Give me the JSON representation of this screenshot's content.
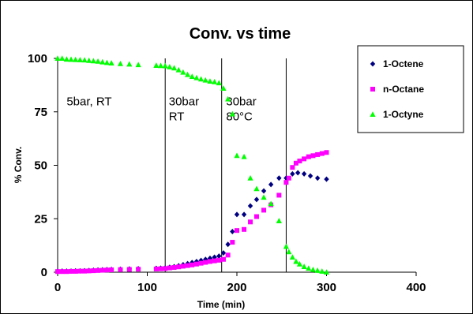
{
  "chart_data": {
    "type": "scatter",
    "title": "Conv. vs time",
    "xlabel": "Time (min)",
    "ylabel": "% Conv.",
    "xlim": [
      0,
      400
    ],
    "ylim": [
      0,
      100
    ],
    "xticks": [
      "0",
      "100",
      "200",
      "300",
      "400"
    ],
    "yticks": [
      "0",
      "25",
      "50",
      "75",
      "100"
    ],
    "grid": false,
    "legend": "top-right",
    "vlines": [
      0,
      120,
      183,
      255
    ],
    "annotations": [
      {
        "lines": [
          "5bar, RT"
        ],
        "x": 10,
        "y": 78
      },
      {
        "lines": [
          "30bar",
          "RT"
        ],
        "x": 124,
        "y": 78
      },
      {
        "lines": [
          "30bar",
          "80°C"
        ],
        "x": 188,
        "y": 78
      }
    ],
    "series": [
      {
        "name": "1-Octene",
        "color": "#000080",
        "marker": "diamond",
        "points": [
          [
            0,
            0.5
          ],
          [
            5,
            0.5
          ],
          [
            10,
            0.5
          ],
          [
            15,
            0.5
          ],
          [
            20,
            0.6
          ],
          [
            25,
            0.6
          ],
          [
            30,
            0.7
          ],
          [
            35,
            0.8
          ],
          [
            40,
            0.9
          ],
          [
            45,
            1.0
          ],
          [
            50,
            1.1
          ],
          [
            55,
            1.2
          ],
          [
            60,
            1.3
          ],
          [
            70,
            1.4
          ],
          [
            80,
            1.5
          ],
          [
            90,
            1.6
          ],
          [
            110,
            1.8
          ],
          [
            115,
            1.9
          ],
          [
            120,
            2.0
          ],
          [
            125,
            2.3
          ],
          [
            130,
            2.6
          ],
          [
            135,
            3.0
          ],
          [
            140,
            3.5
          ],
          [
            145,
            4.0
          ],
          [
            150,
            4.5
          ],
          [
            155,
            5.0
          ],
          [
            160,
            5.5
          ],
          [
            165,
            6.0
          ],
          [
            170,
            6.5
          ],
          [
            175,
            7.0
          ],
          [
            180,
            7.5
          ],
          [
            185,
            9.0
          ],
          [
            190,
            13
          ],
          [
            195,
            19
          ],
          [
            200,
            27
          ],
          [
            208,
            27
          ],
          [
            215,
            31
          ],
          [
            222,
            34
          ],
          [
            230,
            38
          ],
          [
            238,
            41
          ],
          [
            247,
            44
          ],
          [
            255,
            44
          ],
          [
            262,
            46
          ],
          [
            268,
            46.5
          ],
          [
            275,
            46
          ],
          [
            282,
            45
          ],
          [
            290,
            44
          ],
          [
            300,
            43.5
          ]
        ]
      },
      {
        "name": "n-Octane",
        "color": "#ff00ff",
        "marker": "square",
        "points": [
          [
            0,
            0.3
          ],
          [
            5,
            0.3
          ],
          [
            10,
            0.3
          ],
          [
            15,
            0.4
          ],
          [
            20,
            0.4
          ],
          [
            25,
            0.5
          ],
          [
            30,
            0.5
          ],
          [
            35,
            0.6
          ],
          [
            40,
            0.7
          ],
          [
            45,
            0.8
          ],
          [
            50,
            0.9
          ],
          [
            55,
            1.0
          ],
          [
            60,
            1.1
          ],
          [
            70,
            1.2
          ],
          [
            80,
            1.3
          ],
          [
            90,
            1.4
          ],
          [
            110,
            1.5
          ],
          [
            115,
            1.6
          ],
          [
            120,
            1.7
          ],
          [
            125,
            2.0
          ],
          [
            130,
            2.2
          ],
          [
            135,
            2.5
          ],
          [
            140,
            2.8
          ],
          [
            145,
            3.1
          ],
          [
            150,
            3.4
          ],
          [
            155,
            3.8
          ],
          [
            160,
            4.2
          ],
          [
            165,
            4.6
          ],
          [
            170,
            5.0
          ],
          [
            175,
            5.3
          ],
          [
            180,
            5.6
          ],
          [
            185,
            6.0
          ],
          [
            190,
            8.0
          ],
          [
            195,
            14
          ],
          [
            200,
            19.5
          ],
          [
            208,
            20
          ],
          [
            215,
            23.5
          ],
          [
            222,
            26
          ],
          [
            230,
            29
          ],
          [
            238,
            31.5
          ],
          [
            247,
            36
          ],
          [
            255,
            42
          ],
          [
            258,
            44
          ],
          [
            262,
            49
          ],
          [
            266,
            51
          ],
          [
            270,
            52
          ],
          [
            275,
            53
          ],
          [
            280,
            54
          ],
          [
            285,
            54.5
          ],
          [
            290,
            55
          ],
          [
            295,
            55.5
          ],
          [
            300,
            56
          ]
        ]
      },
      {
        "name": "1-Octyne",
        "color": "#00ff00",
        "marker": "triangle",
        "points": [
          [
            0,
            100
          ],
          [
            5,
            100
          ],
          [
            10,
            99.6
          ],
          [
            15,
            99.5
          ],
          [
            20,
            99.4
          ],
          [
            25,
            99.3
          ],
          [
            30,
            99.2
          ],
          [
            35,
            99
          ],
          [
            40,
            98.8
          ],
          [
            45,
            98.6
          ],
          [
            50,
            98.3
          ],
          [
            55,
            98
          ],
          [
            60,
            97.8
          ],
          [
            70,
            97.5
          ],
          [
            80,
            97.3
          ],
          [
            90,
            97
          ],
          [
            110,
            96.7
          ],
          [
            115,
            96.6
          ],
          [
            120,
            96.5
          ],
          [
            125,
            96
          ],
          [
            130,
            95.5
          ],
          [
            135,
            94.6
          ],
          [
            140,
            93.5
          ],
          [
            145,
            92.4
          ],
          [
            150,
            91.5
          ],
          [
            155,
            90.9
          ],
          [
            160,
            90.3
          ],
          [
            165,
            89.8
          ],
          [
            170,
            89.3
          ],
          [
            175,
            89
          ],
          [
            180,
            88.5
          ],
          [
            185,
            86
          ],
          [
            190,
            81
          ],
          [
            195,
            74
          ],
          [
            200,
            54.5
          ],
          [
            208,
            54
          ],
          [
            215,
            44
          ],
          [
            222,
            39
          ],
          [
            230,
            35
          ],
          [
            238,
            32
          ],
          [
            247,
            24
          ],
          [
            255,
            12
          ],
          [
            258,
            9.5
          ],
          [
            262,
            7
          ],
          [
            266,
            5
          ],
          [
            270,
            3.8
          ],
          [
            275,
            2.6
          ],
          [
            280,
            1.8
          ],
          [
            285,
            1.2
          ],
          [
            290,
            0.8
          ],
          [
            295,
            0.4
          ],
          [
            300,
            0
          ]
        ]
      }
    ]
  }
}
